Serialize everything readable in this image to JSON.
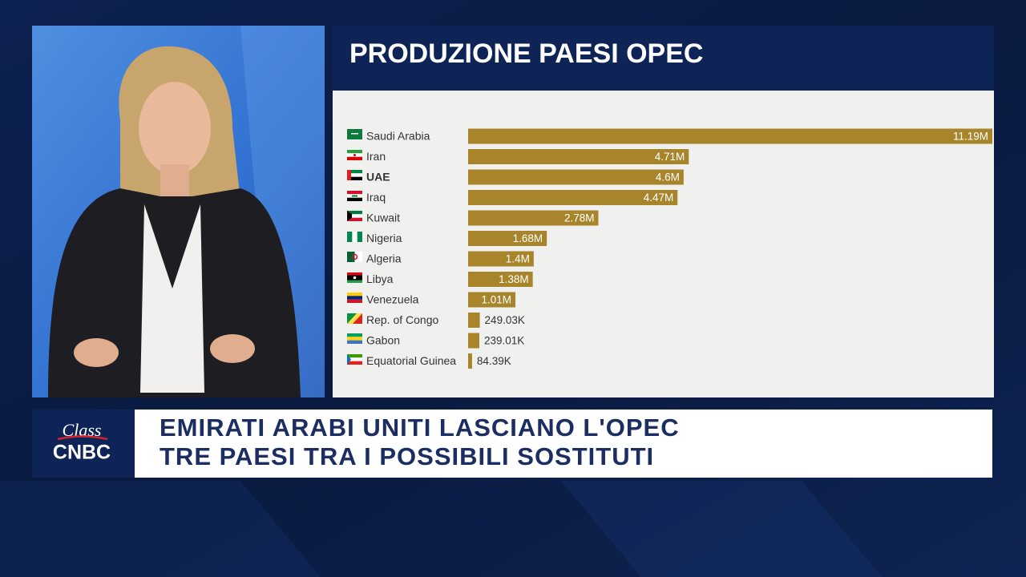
{
  "chart_data": {
    "type": "bar",
    "orientation": "horizontal",
    "title": "PRODUZIONE PAESI OPEC",
    "categories": [
      "Saudi Arabia",
      "Iran",
      "UAE",
      "Iraq",
      "Kuwait",
      "Nigeria",
      "Algeria",
      "Libya",
      "Venezuela",
      "Rep. of Congo",
      "Gabon",
      "Equatorial Guinea"
    ],
    "values": [
      11190000,
      4710000,
      4600000,
      4470000,
      2780000,
      1680000,
      1400000,
      1380000,
      1010000,
      249030,
      239010,
      84390
    ],
    "value_labels": [
      "11.19M",
      "4.71M",
      "4.6M",
      "4.47M",
      "2.78M",
      "1.68M",
      "1.4M",
      "1.38M",
      "1.01M",
      "249.03K",
      "239.01K",
      "84.39K"
    ],
    "color": "#a8852b"
  },
  "headline": {
    "line1": "EMIRATI ARABI UNITI LASCIANO L'OPEC",
    "line2": "TRE PAESI TRA I POSSIBILI SOSTITUTI"
  },
  "logo": {
    "top": "Class",
    "bottom": "CNBC"
  }
}
